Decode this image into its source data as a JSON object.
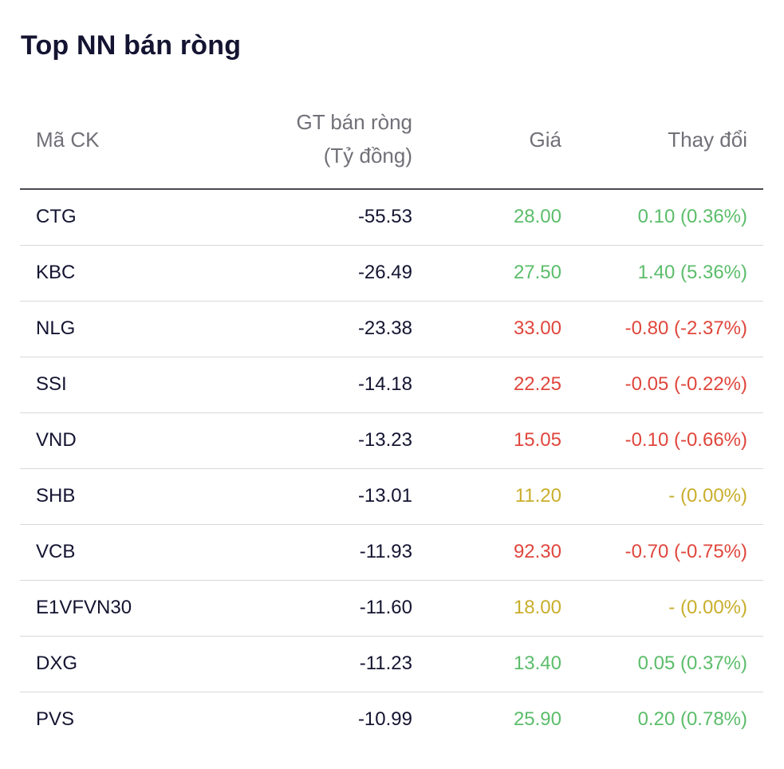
{
  "title": "Top NN bán ròng",
  "header": {
    "code": "Mã CK",
    "value_line1": "GT bán ròng",
    "value_line2": "(Tỷ đồng)",
    "price": "Giá",
    "change": "Thay đổi"
  },
  "colors": {
    "up": "#5bbd6a",
    "down": "#e0463c",
    "flat": "#c9ae2c"
  },
  "rows": [
    {
      "code": "CTG",
      "value": "-55.53",
      "price": "28.00",
      "change": "0.10 (0.36%)",
      "trend": "up"
    },
    {
      "code": "KBC",
      "value": "-26.49",
      "price": "27.50",
      "change": "1.40 (5.36%)",
      "trend": "up"
    },
    {
      "code": "NLG",
      "value": "-23.38",
      "price": "33.00",
      "change": "-0.80 (-2.37%)",
      "trend": "down"
    },
    {
      "code": "SSI",
      "value": "-14.18",
      "price": "22.25",
      "change": "-0.05 (-0.22%)",
      "trend": "down"
    },
    {
      "code": "VND",
      "value": "-13.23",
      "price": "15.05",
      "change": "-0.10 (-0.66%)",
      "trend": "down"
    },
    {
      "code": "SHB",
      "value": "-13.01",
      "price": "11.20",
      "change": "- (0.00%)",
      "trend": "flat"
    },
    {
      "code": "VCB",
      "value": "-11.93",
      "price": "92.30",
      "change": "-0.70 (-0.75%)",
      "trend": "down"
    },
    {
      "code": "E1VFVN30",
      "value": "-11.60",
      "price": "18.00",
      "change": "- (0.00%)",
      "trend": "flat"
    },
    {
      "code": "DXG",
      "value": "-11.23",
      "price": "13.40",
      "change": "0.05 (0.37%)",
      "trend": "up"
    },
    {
      "code": "PVS",
      "value": "-10.99",
      "price": "25.90",
      "change": "0.20 (0.78%)",
      "trend": "up"
    }
  ]
}
